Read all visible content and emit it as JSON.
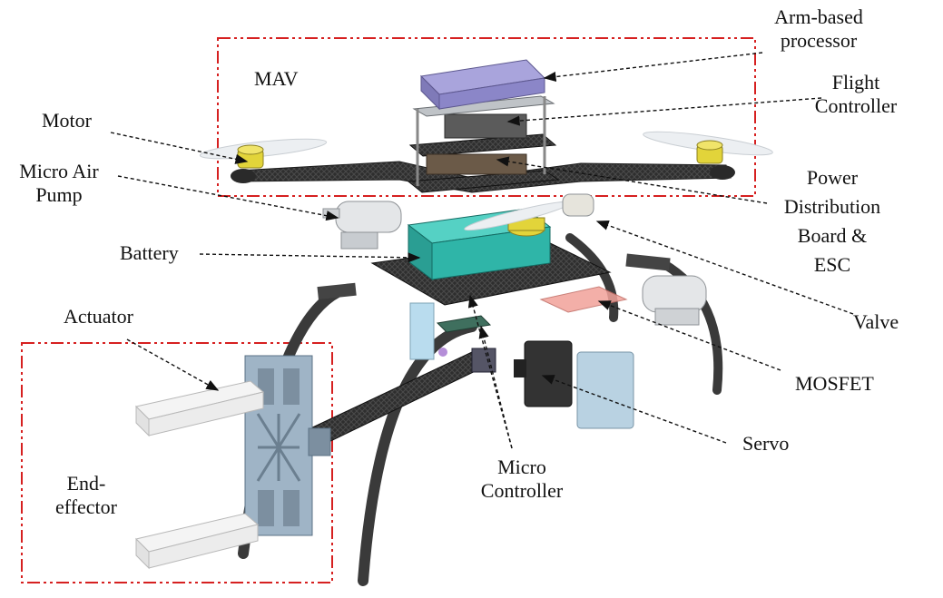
{
  "labels": {
    "mav": "MAV",
    "arm_processor": [
      "Arm-based",
      "processor"
    ],
    "flight_controller": [
      "Flight",
      "Controller"
    ],
    "motor": "Motor",
    "micro_air_pump": [
      "Micro Air",
      "Pump"
    ],
    "power_distribution": [
      "Power",
      "Distribution",
      "Board &",
      "ESC"
    ],
    "battery": "Battery",
    "valve": "Valve",
    "actuator": "Actuator",
    "mosfet": "MOSFET",
    "servo": "Servo",
    "micro_controller": [
      "Micro",
      "Controller"
    ],
    "end_effector": [
      "End-",
      "effector"
    ]
  },
  "colors": {
    "frame_box": "#d62020",
    "processor": "#8b86c8",
    "battery": "#2fb5a8",
    "motor": "#e2d43a",
    "carbon": "#3a3a3a",
    "end_effector": "#9fb4c6",
    "mosfet": "#f2a29a",
    "component_grey": "#d8dadd"
  }
}
